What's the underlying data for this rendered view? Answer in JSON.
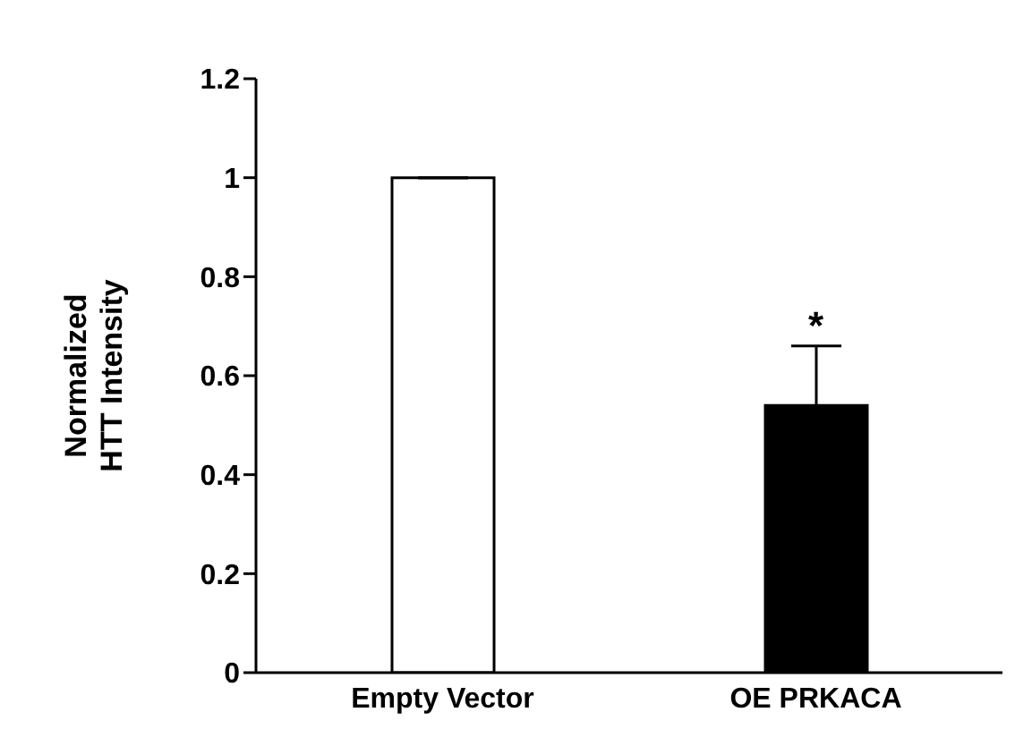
{
  "chart_data": {
    "type": "bar",
    "ylabel": "Normalized HTT Intensity",
    "categories": [
      "Empty Vector",
      "OE PRKACA"
    ],
    "values": [
      1,
      0.54
    ],
    "colors": [
      "#ffffff",
      "#000000"
    ],
    "errors": [
      null,
      0.12
    ],
    "ylim": [
      0,
      1.2
    ],
    "yticks": [
      0,
      0.2,
      0.4,
      0.6,
      0.8,
      1,
      1.2
    ],
    "grid": false,
    "annotations": [
      "*"
    ]
  }
}
